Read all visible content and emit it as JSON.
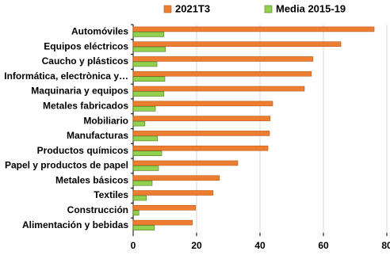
{
  "chart_data": {
    "type": "hbar",
    "categories": [
      "Automóviles",
      "Equipos eléctricos",
      "Caucho y plásticos",
      "Informática, electrònica y…",
      "Maquinaria y equipos",
      "Metales fabricados",
      "Mobiliario",
      "Manufacturas",
      "Productos químicos",
      "Papel y productos de papel",
      "Metales básicos",
      "Textiles",
      "Construcción",
      "Alimentación y bebidas"
    ],
    "series": [
      {
        "name": "2021T3",
        "color": "#ed7d31",
        "values": [
          76,
          65.5,
          56.7,
          56.2,
          54,
          44,
          43.2,
          43,
          42.5,
          33,
          27.2,
          25.2,
          19.7,
          18.7
        ]
      },
      {
        "name": "Media 2015-19",
        "color": "#92d050",
        "values": [
          9.7,
          10.2,
          7.5,
          10,
          9.7,
          7,
          3.7,
          7.7,
          9,
          8,
          6,
          4.2,
          1.8,
          6.7
        ]
      }
    ],
    "xlim": [
      0,
      80
    ],
    "xticks": [
      0,
      20,
      40,
      60,
      80
    ],
    "grid": true,
    "legend": "top"
  }
}
